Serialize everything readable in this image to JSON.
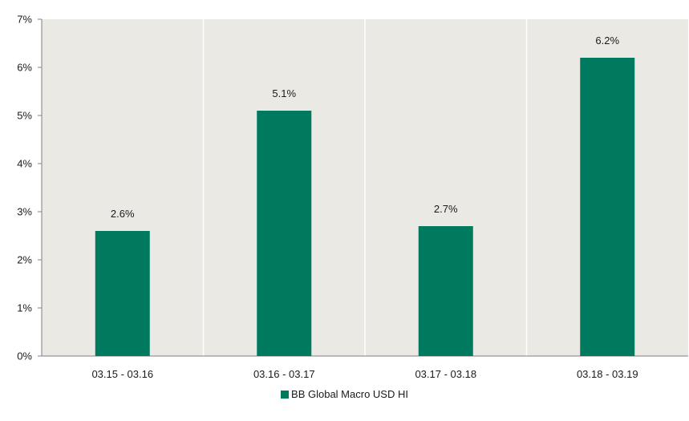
{
  "chart_data": {
    "type": "bar",
    "categories": [
      "03.15 - 03.16",
      "03.16 - 03.17",
      "03.17 - 03.18",
      "03.18 - 03.19"
    ],
    "series": [
      {
        "name": "BB Global Macro USD HI",
        "values": [
          2.6,
          5.1,
          2.7,
          6.2
        ],
        "labels": [
          "2.6%",
          "5.1%",
          "2.7%",
          "6.2%"
        ]
      }
    ],
    "ylim": [
      0,
      7
    ],
    "yticks": [
      "0%",
      "1%",
      "2%",
      "3%",
      "4%",
      "5%",
      "6%",
      "7%"
    ],
    "grid": "vertical category separators",
    "legend_position": "bottom-center",
    "colors": {
      "bar": "#007a5e",
      "plot_bg": "#ebe9e4",
      "separator": "#ffffff",
      "axis": "#7f7f7f"
    }
  }
}
